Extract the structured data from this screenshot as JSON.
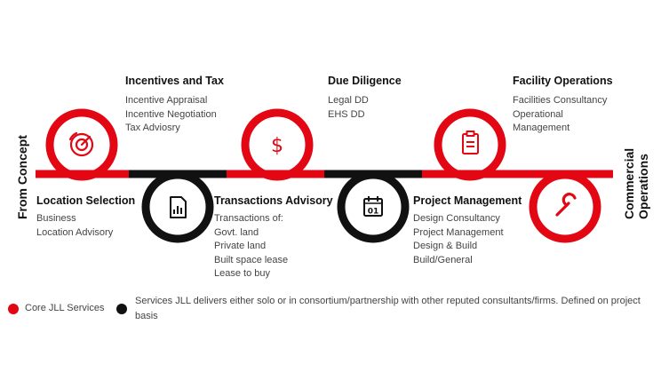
{
  "side_labels": {
    "left": "From Concept",
    "right": "Commercial Operations"
  },
  "colors": {
    "core": "#e30613",
    "partner": "#111111"
  },
  "stages": [
    {
      "title": "Location Selection",
      "items": [
        "Business",
        "Location Advisory"
      ],
      "type": "core",
      "icon": "radar-icon"
    },
    {
      "title": "Incentives and Tax",
      "items": [
        "Incentive Appraisal",
        "Incentive Negotiation",
        "Tax Adviosry"
      ],
      "type": "core",
      "icon": "target-icon"
    },
    {
      "title": "Transactions Advisory",
      "items": [
        "Transactions of:",
        "Govt. land",
        "Private land",
        "Built space lease",
        "Lease to buy"
      ],
      "type": "partner",
      "icon": "document-chart-icon"
    },
    {
      "title": "Due Diligence",
      "items": [
        "Legal DD",
        "EHS DD"
      ],
      "type": "core",
      "icon": "dollar-icon"
    },
    {
      "title": "Project Management",
      "items": [
        "Design Consultancy",
        "Project Management",
        "Design & Build",
        "Build/General"
      ],
      "type": "partner",
      "icon": "calendar-icon",
      "icon_text": "01"
    },
    {
      "title": "Facility Operations",
      "items": [
        "Facilities Consultancy",
        "Operational",
        "Management"
      ],
      "type": "core",
      "icon": "clipboard-icon"
    },
    {
      "title": "",
      "items": [],
      "type": "core",
      "icon": "wrench-icon"
    }
  ],
  "legend": [
    {
      "label": "Core JLL Services",
      "color": "#e30613"
    },
    {
      "label": "Services JLL delivers either solo or in consortium/partnership with other reputed consultants/firms. Defined on project basis",
      "color": "#111111"
    }
  ]
}
